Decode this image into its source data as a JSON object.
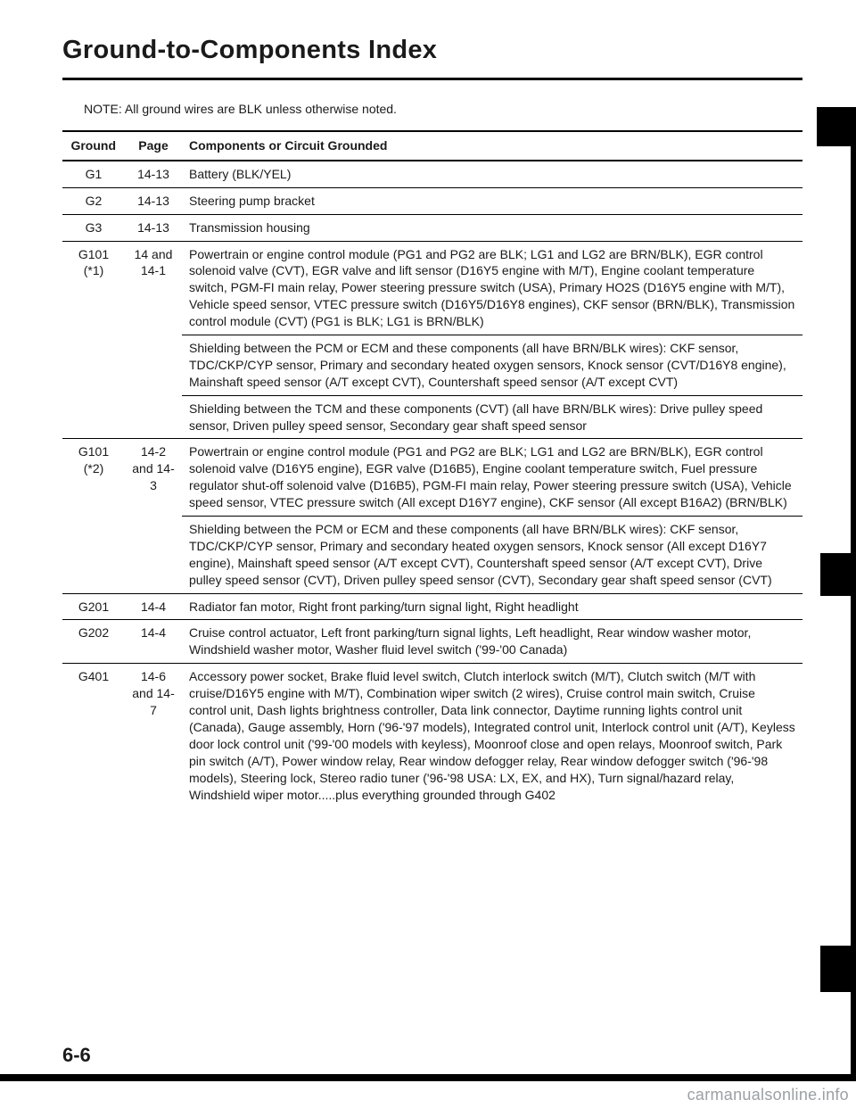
{
  "title": "Ground-to-Components Index",
  "note": "NOTE: All ground wires are BLK unless otherwise noted.",
  "page_number": "6-6",
  "watermark": "carmanualsonline.info",
  "headers": {
    "ground": "Ground",
    "page": "Page",
    "components": "Components or Circuit Grounded"
  },
  "rows": [
    {
      "ground": "G1",
      "page": "14-13",
      "components": [
        "Battery (BLK/YEL)"
      ]
    },
    {
      "ground": "G2",
      "page": "14-13",
      "components": [
        "Steering pump bracket"
      ]
    },
    {
      "ground": "G3",
      "page": "14-13",
      "components": [
        "Transmission housing"
      ]
    },
    {
      "ground": "G101 (*1)",
      "page": "14 and 14-1",
      "components": [
        "Powertrain or engine control module (PG1 and PG2 are BLK; LG1 and LG2 are BRN/BLK), EGR control solenoid valve (CVT), EGR valve and lift sensor (D16Y5 engine with M/T), Engine coolant temperature switch, PGM-FI main relay, Power steering pressure switch (USA), Primary HO2S (D16Y5 engine with M/T), Vehicle speed sensor, VTEC pressure switch (D16Y5/D16Y8 engines), CKF sensor (BRN/BLK), Transmission control module (CVT) (PG1 is BLK; LG1 is BRN/BLK)",
        "Shielding between the PCM or ECM and these components (all have BRN/BLK wires): CKF sensor, TDC/CKP/CYP sensor, Primary and secondary heated oxygen sensors, Knock sensor (CVT/D16Y8 engine), Mainshaft speed sensor (A/T except CVT), Countershaft speed sensor (A/T except CVT)",
        "Shielding between the TCM and these components (CVT) (all have BRN/BLK wires): Drive pulley speed sensor, Driven pulley speed sensor, Secondary gear shaft speed sensor"
      ]
    },
    {
      "ground": "G101 (*2)",
      "page": "14-2 and 14-3",
      "components": [
        "Powertrain or engine control module (PG1 and PG2 are BLK; LG1 and LG2 are BRN/BLK), EGR control solenoid valve (D16Y5 engine), EGR valve (D16B5), Engine coolant temperature switch, Fuel pressure regulator shut-off solenoid valve (D16B5), PGM-FI main relay, Power steering pressure switch (USA), Vehicle speed sensor, VTEC pressure switch (All except D16Y7 engine), CKF sensor (All except B16A2) (BRN/BLK)",
        "Shielding between the PCM or ECM and these components (all have BRN/BLK wires): CKF sensor, TDC/CKP/CYP sensor, Primary and secondary heated oxygen sensors, Knock sensor (All except D16Y7 engine), Mainshaft speed sensor (A/T except CVT), Countershaft speed sensor (A/T except CVT), Drive pulley speed sensor (CVT), Driven pulley speed sensor (CVT), Secondary gear shaft speed sensor (CVT)"
      ]
    },
    {
      "ground": "G201",
      "page": "14-4",
      "components": [
        "Radiator fan motor, Right front parking/turn signal light, Right headlight"
      ]
    },
    {
      "ground": "G202",
      "page": "14-4",
      "components": [
        "Cruise control actuator, Left front parking/turn signal lights, Left headlight, Rear window washer motor, Windshield washer motor, Washer fluid level switch ('99-'00 Canada)"
      ]
    },
    {
      "ground": "G401",
      "page": "14-6 and 14-7",
      "components": [
        "Accessory power socket, Brake fluid level switch, Clutch interlock switch (M/T), Clutch switch (M/T with cruise/D16Y5 engine with M/T), Combination wiper switch (2 wires), Cruise control main switch, Cruise control unit, Dash lights brightness controller, Data link connector, Daytime running lights control unit (Canada), Gauge assembly, Horn ('96-'97 models), Integrated control unit, Interlock control unit (A/T), Keyless door lock control unit ('99-'00 models with keyless), Moonroof close and open relays, Moonroof switch, Park pin switch (A/T), Power window relay, Rear window defogger relay, Rear window defogger switch ('96-'98 models), Steering lock, Stereo radio tuner ('96-'98 USA: LX, EX, and HX), Turn signal/hazard relay, Windshield wiper motor.....plus everything grounded through G402"
      ]
    }
  ]
}
